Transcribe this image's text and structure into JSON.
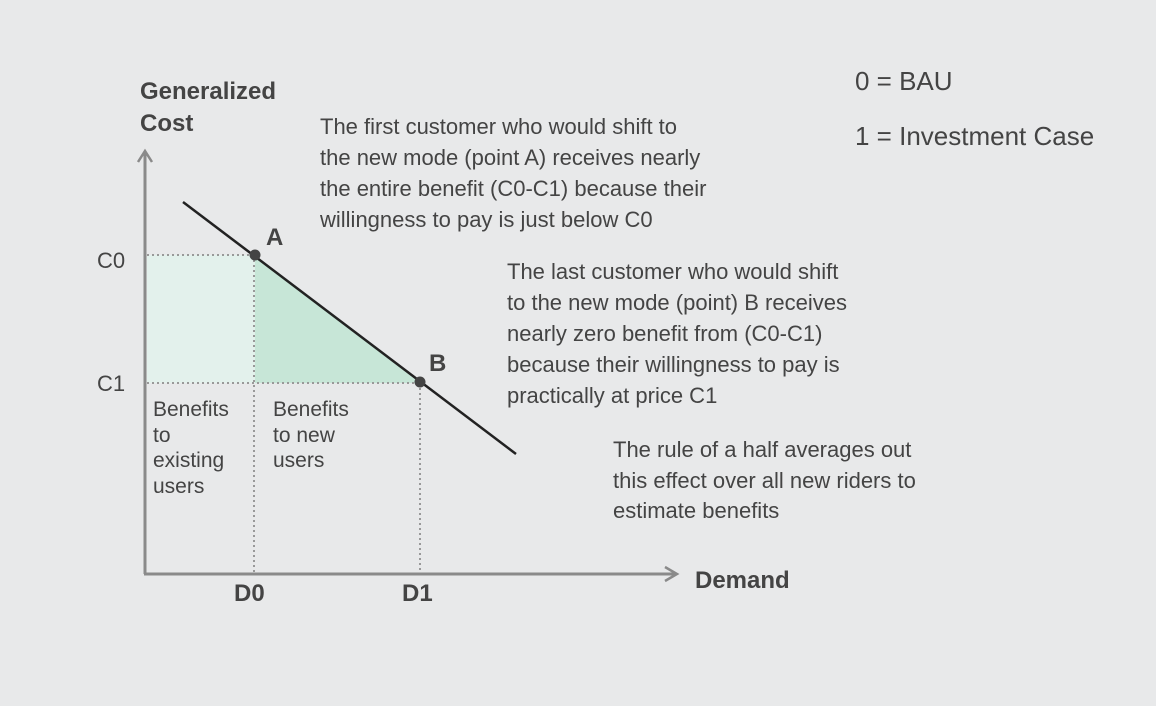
{
  "axes": {
    "y_label": "Generalized\nCost",
    "x_label": "Demand",
    "y_ticks": [
      "C0",
      "C1"
    ],
    "x_ticks": [
      "D0",
      "D1"
    ]
  },
  "points": {
    "a": "A",
    "b": "B"
  },
  "areas": {
    "existing_users": "Benefits\nto\nexisting\nusers",
    "new_users": "Benefits\nto new\nusers"
  },
  "annotations": {
    "point_a": "The first customer who would shift to\nthe new mode (point A) receives nearly\nthe entire benefit (C0-C1) because their\nwillingness to pay is just below C0",
    "point_b": "The last customer who would shift\nto the new mode (point) B receives\nnearly zero benefit from (C0-C1)\nbecause their willingness to pay is\npractically at price C1",
    "rule_of_half": "The rule of a half averages out\nthis effect over all new riders to\nestimate benefits"
  },
  "legend": {
    "bau": "0 = BAU",
    "investment": "1 = Investment Case"
  },
  "colors": {
    "background": "#e8e9ea",
    "existing_area": "#e3f1ec",
    "new_area": "#c7e6d7",
    "axis": "#8a8a8a",
    "demand_line": "#222222",
    "guide": "#999999"
  }
}
